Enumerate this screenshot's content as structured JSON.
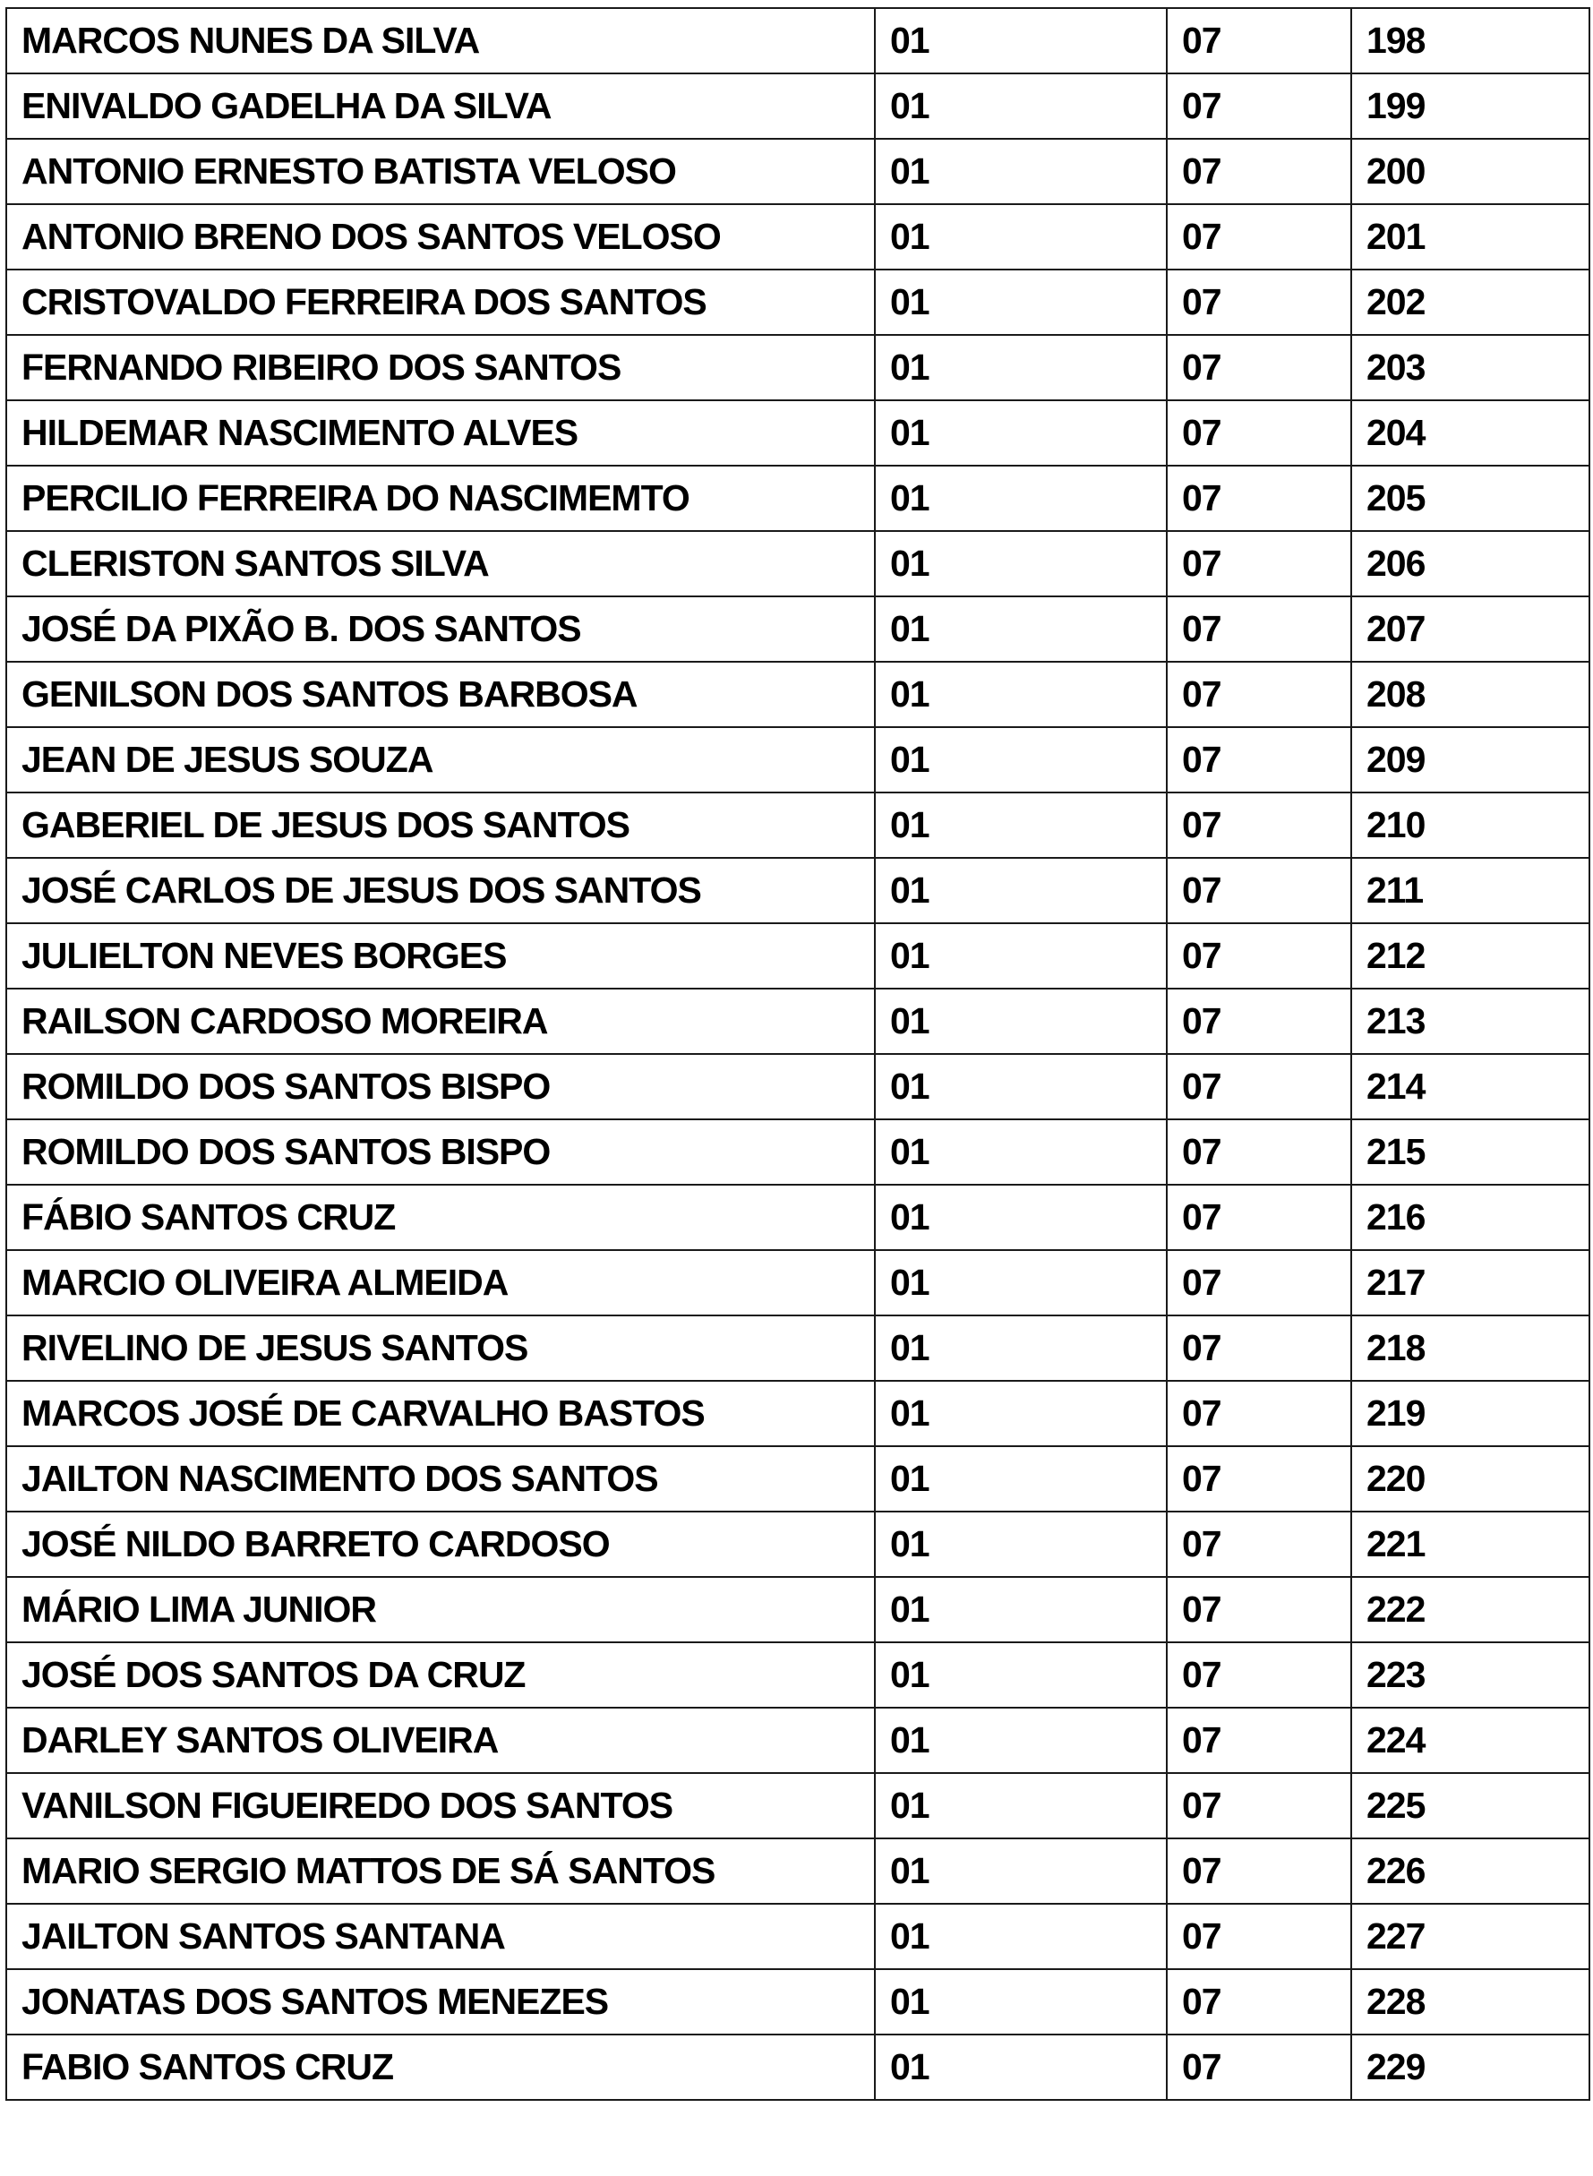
{
  "rows": [
    {
      "name": "MARCOS NUNES DA SILVA",
      "a": "01",
      "b": "07",
      "n": "198"
    },
    {
      "name": "ENIVALDO GADELHA DA SILVA",
      "a": "01",
      "b": "07",
      "n": "199"
    },
    {
      "name": "ANTONIO ERNESTO BATISTA VELOSO",
      "a": "01",
      "b": "07",
      "n": "200"
    },
    {
      "name": "ANTONIO BRENO DOS SANTOS VELOSO",
      "a": "01",
      "b": "07",
      "n": "201"
    },
    {
      "name": "CRISTOVALDO FERREIRA DOS SANTOS",
      "a": "01",
      "b": "07",
      "n": "202"
    },
    {
      "name": "FERNANDO RIBEIRO DOS SANTOS",
      "a": "01",
      "b": "07",
      "n": "203"
    },
    {
      "name": "HILDEMAR  NASCIMENTO ALVES",
      "a": "01",
      "b": "07",
      "n": "204"
    },
    {
      "name": "PERCILIO FERREIRA DO NASCIMEMTO",
      "a": "01",
      "b": "07",
      "n": "205"
    },
    {
      "name": "CLERISTON SANTOS SILVA",
      "a": "01",
      "b": "07",
      "n": "206"
    },
    {
      "name": "JOSÉ DA PIXÃO B. DOS SANTOS",
      "a": "01",
      "b": "07",
      "n": "207"
    },
    {
      "name": "GENILSON DOS SANTOS BARBOSA",
      "a": "01",
      "b": "07",
      "n": "208"
    },
    {
      "name": "JEAN DE JESUS SOUZA",
      "a": "01",
      "b": "07",
      "n": "209"
    },
    {
      "name": "GABERIEL DE JESUS DOS SANTOS",
      "a": "01",
      "b": "07",
      "n": "210"
    },
    {
      "name": "JOSÉ CARLOS DE JESUS DOS SANTOS",
      "a": "01",
      "b": "07",
      "n": "211"
    },
    {
      "name": "JULIELTON NEVES BORGES",
      "a": "01",
      "b": "07",
      "n": "212"
    },
    {
      "name": "RAILSON CARDOSO MOREIRA",
      "a": "01",
      "b": "07",
      "n": "213"
    },
    {
      "name": "ROMILDO DOS SANTOS BISPO",
      "a": "01",
      "b": "07",
      "n": "214"
    },
    {
      "name": "ROMILDO DOS SANTOS BISPO",
      "a": "01",
      "b": "07",
      "n": "215"
    },
    {
      "name": "FÁBIO SANTOS CRUZ",
      "a": "01",
      "b": "07",
      "n": "216"
    },
    {
      "name": "MARCIO OLIVEIRA ALMEIDA",
      "a": "01",
      "b": "07",
      "n": "217"
    },
    {
      "name": "RIVELINO DE JESUS SANTOS",
      "a": "01",
      "b": "07",
      "n": "218"
    },
    {
      "name": "MARCOS JOSÉ DE CARVALHO BASTOS",
      "a": "01",
      "b": "07",
      "n": "219"
    },
    {
      "name": "JAILTON NASCIMENTO DOS SANTOS",
      "a": "01",
      "b": "07",
      "n": "220"
    },
    {
      "name": "JOSÉ NILDO BARRETO CARDOSO",
      "a": "01",
      "b": "07",
      "n": "221"
    },
    {
      "name": "MÁRIO LIMA JUNIOR",
      "a": "01",
      "b": "07",
      "n": "222"
    },
    {
      "name": "JOSÉ DOS SANTOS DA CRUZ",
      "a": "01",
      "b": "07",
      "n": "223"
    },
    {
      "name": "DARLEY SANTOS OLIVEIRA",
      "a": "01",
      "b": "07",
      "n": "224"
    },
    {
      "name": "VANILSON FIGUEIREDO DOS SANTOS",
      "a": "01",
      "b": "07",
      "n": "225"
    },
    {
      "name": "MARIO SERGIO MATTOS DE SÁ SANTOS",
      "a": "01",
      "b": "07",
      "n": "226"
    },
    {
      "name": "JAILTON SANTOS SANTANA",
      "a": "01",
      "b": "07",
      "n": "227"
    },
    {
      "name": "JONATAS DOS SANTOS MENEZES",
      "a": "01",
      "b": "07",
      "n": "228"
    },
    {
      "name": "FABIO SANTOS CRUZ",
      "a": "01",
      "b": "07",
      "n": "229"
    }
  ]
}
